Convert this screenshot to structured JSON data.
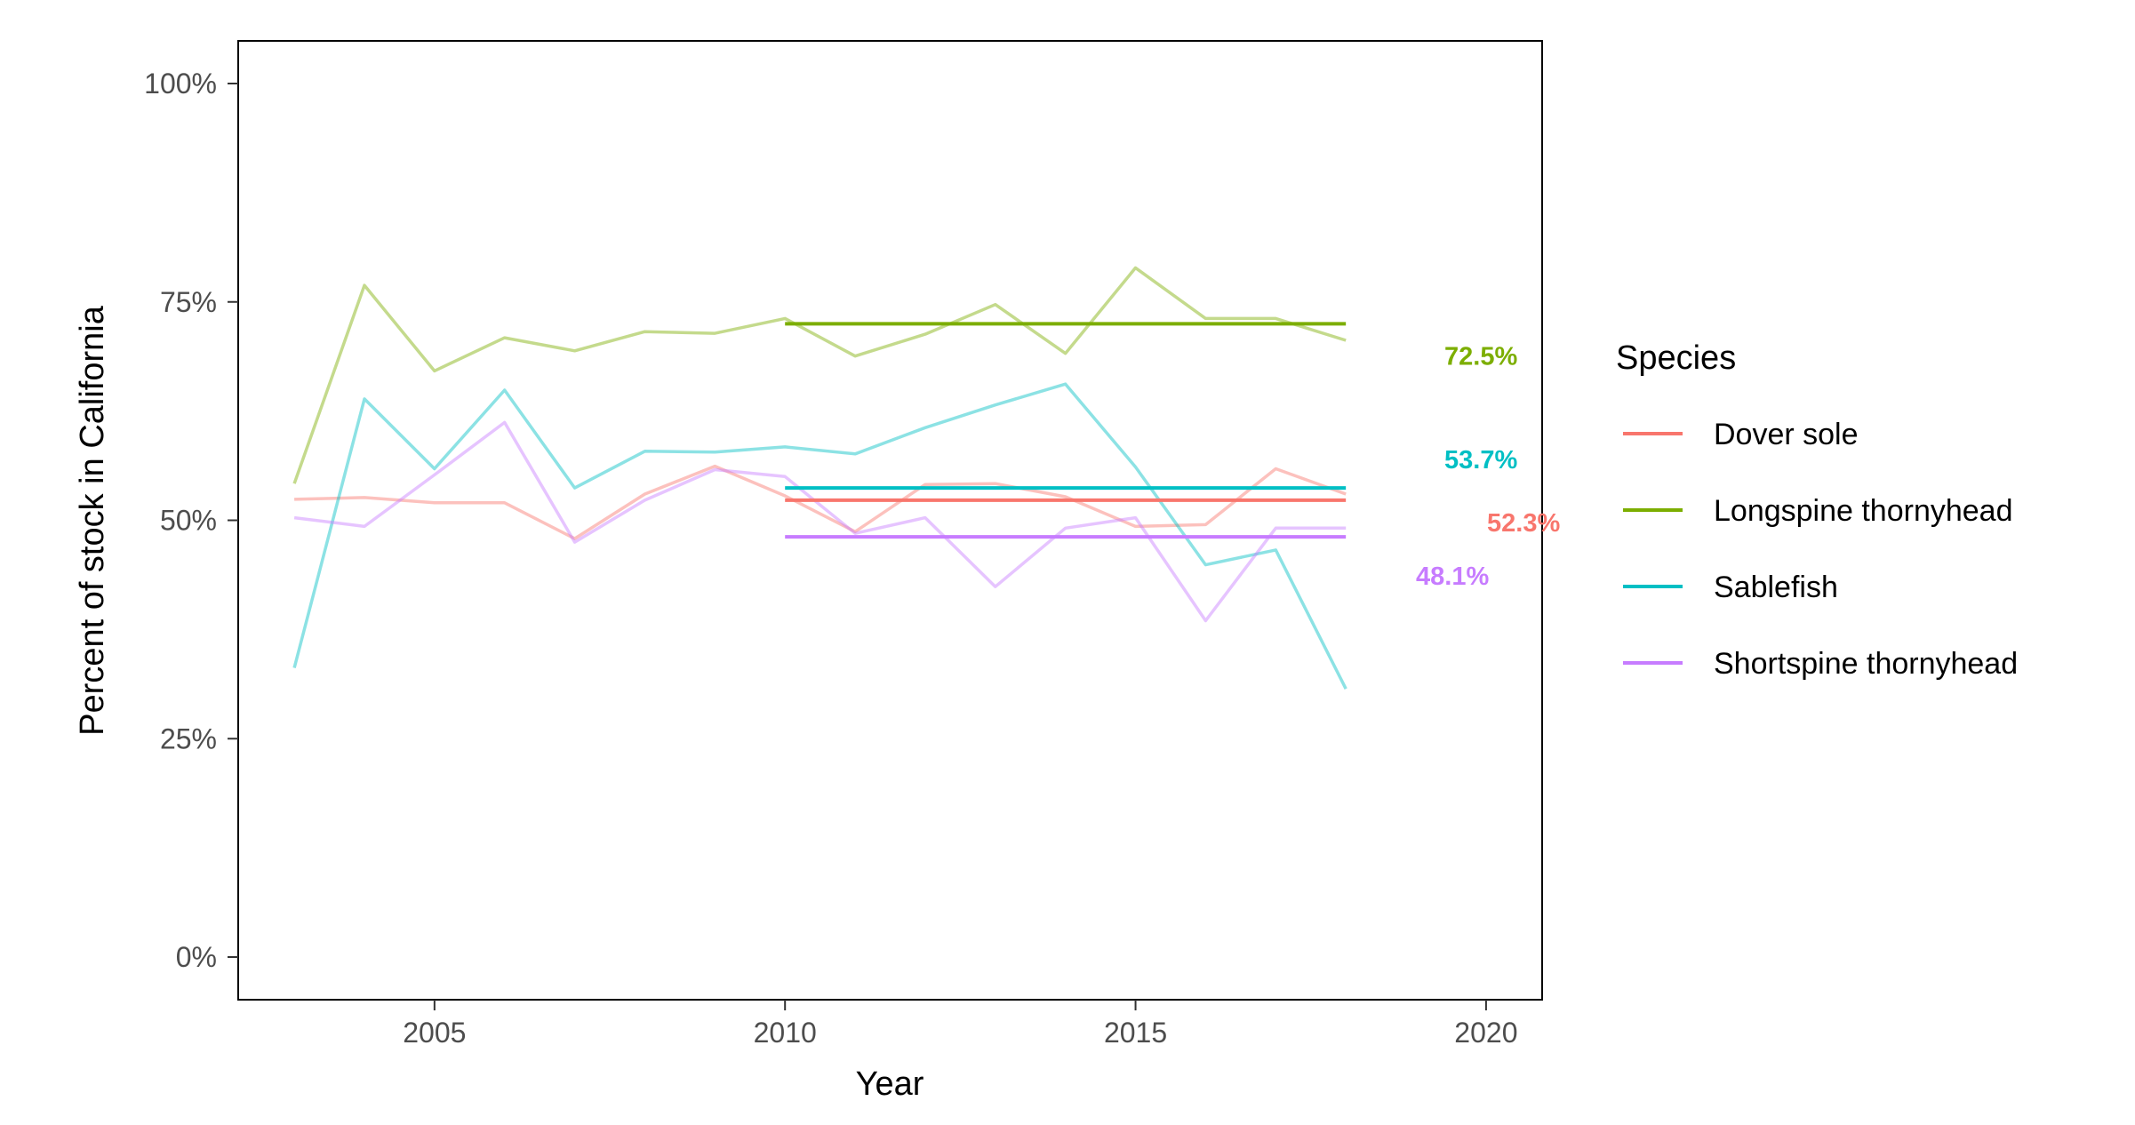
{
  "chart_data": {
    "type": "line",
    "xlabel": "Year",
    "ylabel": "Percent of stock in California",
    "xlim": [
      2002.2,
      2020.8
    ],
    "ylim": [
      0,
      100
    ],
    "x_ticks": [
      "2005",
      "2010",
      "2015",
      "2020"
    ],
    "y_ticks": [
      "0%",
      "25%",
      "50%",
      "75%",
      "100%"
    ],
    "grid": false,
    "legend": {
      "title": "Species",
      "position": "right"
    },
    "x": [
      2003,
      2004,
      2005,
      2006,
      2007,
      2008,
      2009,
      2010,
      2011,
      2012,
      2013,
      2014,
      2015,
      2016,
      2017,
      2018
    ],
    "series": [
      {
        "name": "Dover sole",
        "color": "#F8766D",
        "values": [
          52.4,
          52.6,
          52.0,
          52.0,
          47.9,
          53.0,
          56.2,
          52.8,
          48.7,
          54.1,
          54.2,
          52.7,
          49.3,
          49.5,
          55.9,
          53.0
        ],
        "average": {
          "value": 52.3,
          "x_start": 2010,
          "x_end": 2018,
          "label": "52.3%"
        }
      },
      {
        "name": "Longspine thornyhead",
        "color": "#7CAE00",
        "values": [
          54.2,
          76.9,
          67.1,
          70.9,
          69.4,
          71.6,
          71.4,
          73.1,
          68.8,
          71.3,
          74.7,
          69.1,
          78.9,
          73.1,
          73.1,
          70.6
        ],
        "average": {
          "value": 72.5,
          "x_start": 2010,
          "x_end": 2018,
          "label": "72.5%"
        }
      },
      {
        "name": "Sablefish",
        "color": "#00BFC4",
        "values": [
          33.1,
          63.9,
          55.9,
          64.9,
          53.7,
          57.9,
          57.8,
          58.4,
          57.6,
          60.6,
          63.2,
          65.6,
          56.1,
          44.9,
          46.6,
          30.7
        ],
        "average": {
          "value": 53.7,
          "x_start": 2010,
          "x_end": 2018,
          "label": "53.7%"
        }
      },
      {
        "name": "Shortspine thornyhead",
        "color": "#C77CFF",
        "values": [
          50.3,
          49.3,
          55.2,
          61.2,
          47.5,
          52.3,
          55.8,
          55.0,
          48.5,
          50.3,
          42.4,
          49.1,
          50.3,
          38.5,
          49.1,
          49.1
        ],
        "average": {
          "value": 48.1,
          "x_start": 2010,
          "x_end": 2018,
          "label": "48.1%"
        }
      }
    ]
  }
}
